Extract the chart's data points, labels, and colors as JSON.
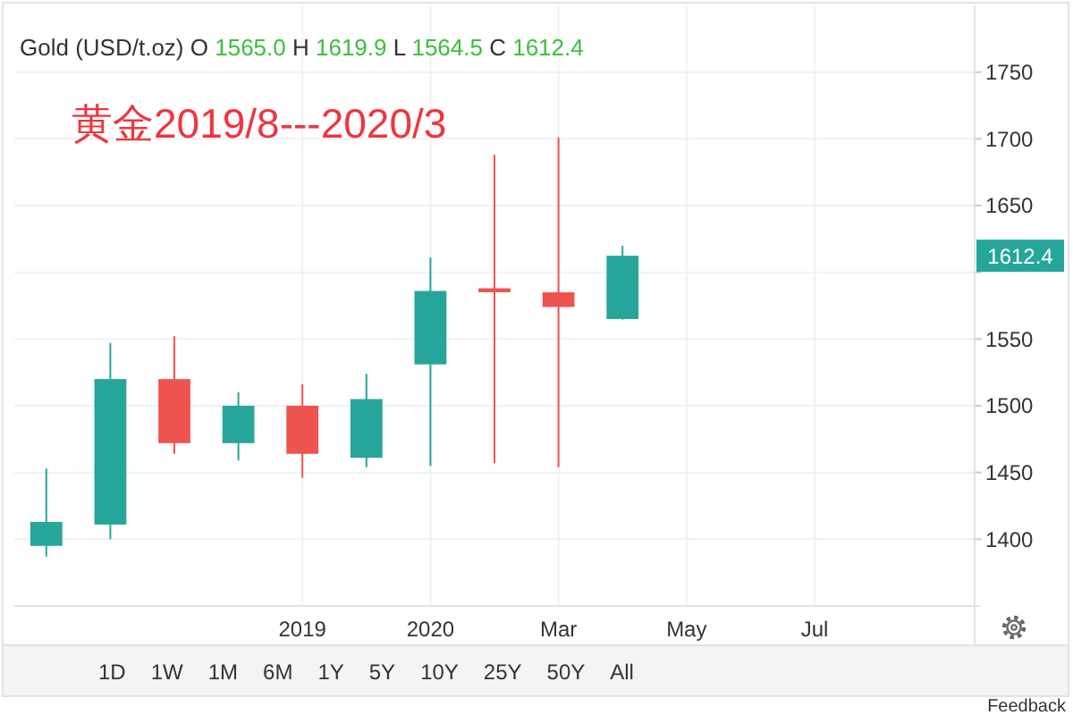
{
  "chart_data": {
    "type": "candlestick",
    "title": "Gold (USD/t.oz) O 1565.0 H 1619.9 L 1564.5 C 1612.4",
    "subtitle": "黄金2019/8---2020/3",
    "categories": [
      null,
      null,
      null,
      null,
      "2019",
      null,
      "2020",
      null,
      "Mar",
      null,
      "May",
      null,
      "Jul",
      null,
      null
    ],
    "ohlc": [
      [
        1395,
        1453,
        1387,
        1413
      ],
      [
        1411,
        1547,
        1400,
        1520
      ],
      [
        1520,
        1552,
        1464,
        1472
      ],
      [
        1472,
        1510,
        1459,
        1500
      ],
      [
        1500,
        1516,
        1446,
        1464
      ],
      [
        1461,
        1524,
        1454,
        1505
      ],
      [
        1531,
        1611,
        1455,
        1586
      ],
      [
        1588,
        1688,
        1457,
        1585
      ],
      [
        1585,
        1701,
        1454,
        1574
      ],
      [
        1565.0,
        1619.9,
        1564.5,
        1612.4
      ],
      null,
      null,
      null,
      null,
      null
    ],
    "colors": [
      "#26a69a",
      "#26a69a",
      "#ef5350",
      "#26a69a",
      "#ef5350",
      "#26a69a",
      "#26a69a",
      "#ef5350",
      "#ef5350",
      "#26a69a",
      null,
      null,
      null,
      null,
      null
    ],
    "ylim": [
      1350,
      1800
    ],
    "yticks": [
      1400,
      1450,
      1500,
      1550,
      {
        "value": 1600,
        "label": null
      },
      1650,
      1700,
      1750
    ],
    "grid": true,
    "annotations": [
      "1612.4",
      "1D",
      "1W",
      "1M",
      "6M",
      "1Y",
      "5Y",
      "10Y",
      "25Y",
      "50Y",
      "All",
      "Feedback"
    ]
  }
}
